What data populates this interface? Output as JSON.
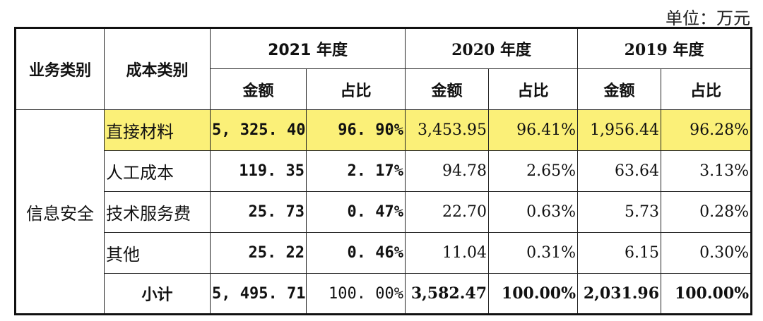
{
  "unit_label": "单位：万元",
  "headers": {
    "business_type": "业务类别",
    "cost_type": "成本类别",
    "years": [
      "2021 年度",
      "2020 年度",
      "2019 年度"
    ],
    "amount": "金额",
    "ratio": "占比"
  },
  "business": "信息安全",
  "rows": [
    {
      "category": "直接材料",
      "y2021_amount": "5, 325. 40",
      "y2021_ratio": "96. 90%",
      "y2020_amount": "3,453.95",
      "y2020_ratio": "96.41%",
      "y2019_amount": "1,956.44",
      "y2019_ratio": "96.28%"
    },
    {
      "category": "人工成本",
      "y2021_amount": "119. 35",
      "y2021_ratio": "2. 17%",
      "y2020_amount": "94.78",
      "y2020_ratio": "2.65%",
      "y2019_amount": "63.64",
      "y2019_ratio": "3.13%"
    },
    {
      "category": "技术服务费",
      "y2021_amount": "25. 73",
      "y2021_ratio": "0. 47%",
      "y2020_amount": "22.70",
      "y2020_ratio": "0.63%",
      "y2019_amount": "5.73",
      "y2019_ratio": "0.28%"
    },
    {
      "category": "其他",
      "y2021_amount": "25. 22",
      "y2021_ratio": "0. 46%",
      "y2020_amount": "11.04",
      "y2020_ratio": "0.31%",
      "y2019_amount": "6.15",
      "y2019_ratio": "0.30%"
    }
  ],
  "subtotal": {
    "category": "小计",
    "y2021_amount": "5, 495. 71",
    "y2021_ratio": "100. 00%",
    "y2020_amount": "3,582.47",
    "y2020_ratio": "100.00%",
    "y2019_amount": "2,031.96",
    "y2019_ratio": "100.00%"
  },
  "colors": {
    "highlight": "#fbf078"
  }
}
